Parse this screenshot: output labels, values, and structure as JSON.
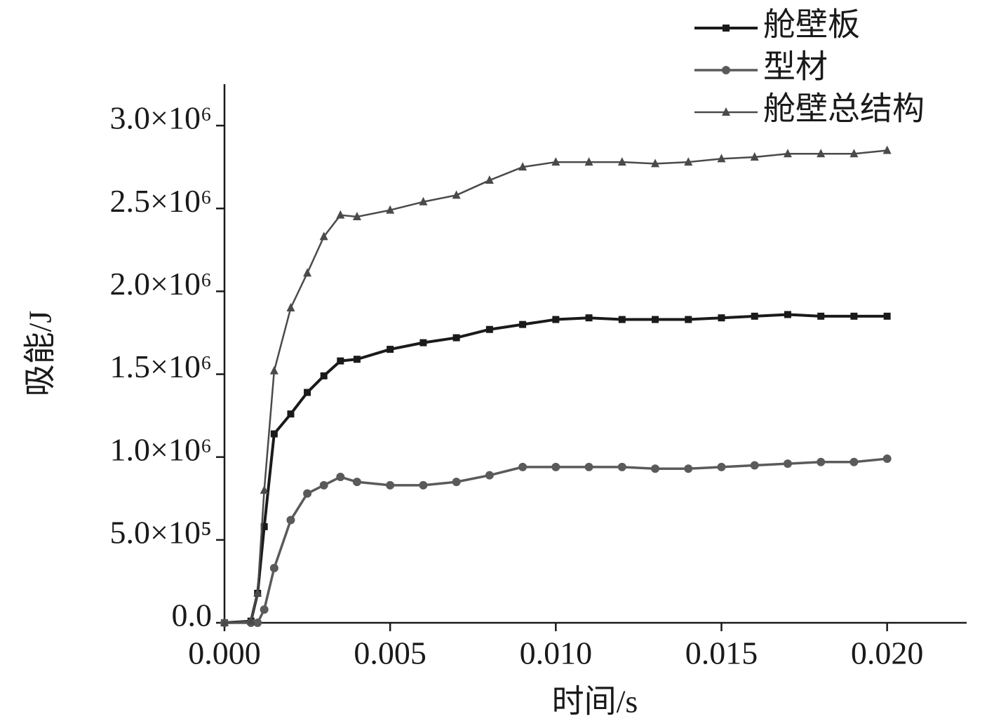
{
  "chart_data": {
    "type": "line",
    "xlabel": "时间/s",
    "ylabel": "吸能/J",
    "x": [
      0,
      0.0008,
      0.001,
      0.0012,
      0.0015,
      0.002,
      0.0025,
      0.003,
      0.0035,
      0.004,
      0.005,
      0.006,
      0.007,
      0.008,
      0.009,
      0.01,
      0.011,
      0.012,
      0.013,
      0.014,
      0.015,
      0.016,
      0.017,
      0.018,
      0.019,
      0.02
    ],
    "series": [
      {
        "name": "舱壁板",
        "color": "#1a1a1a",
        "marker": "square",
        "linewidth": 4,
        "values": [
          0,
          10000,
          178000,
          580000,
          1140000,
          1260000,
          1390000,
          1490000,
          1580000,
          1590000,
          1650000,
          1690000,
          1720000,
          1770000,
          1800000,
          1830000,
          1840000,
          1830000,
          1830000,
          1830000,
          1840000,
          1850000,
          1860000,
          1850000,
          1850000,
          1850000
        ]
      },
      {
        "name": "型材",
        "color": "#5a5a5a",
        "marker": "circle",
        "linewidth": 3.5,
        "values": [
          0,
          0,
          0,
          80000,
          330000,
          620000,
          780000,
          830000,
          880000,
          850000,
          830000,
          830000,
          850000,
          890000,
          940000,
          940000,
          940000,
          940000,
          930000,
          930000,
          940000,
          950000,
          960000,
          970000,
          970000,
          990000
        ]
      },
      {
        "name": "舱壁总结构",
        "color": "#4a4a4a",
        "marker": "triangle",
        "linewidth": 2.5,
        "values": [
          0,
          10000,
          180000,
          800000,
          1520000,
          1900000,
          2110000,
          2330000,
          2460000,
          2450000,
          2490000,
          2540000,
          2580000,
          2670000,
          2750000,
          2780000,
          2780000,
          2780000,
          2770000,
          2780000,
          2800000,
          2810000,
          2830000,
          2830000,
          2830000,
          2850000
        ]
      }
    ],
    "xlim": [
      0,
      0.0224
    ],
    "ylim": [
      0,
      3250000
    ],
    "xticks": [
      {
        "value": 0,
        "label": "0.000"
      },
      {
        "value": 0.005,
        "label": "0.005"
      },
      {
        "value": 0.01,
        "label": "0.010"
      },
      {
        "value": 0.015,
        "label": "0.015"
      },
      {
        "value": 0.02,
        "label": "0.020"
      }
    ],
    "yticks": [
      {
        "value": 0,
        "label": "0.0"
      },
      {
        "value": 500000,
        "label": "5.0×10⁵"
      },
      {
        "value": 1000000,
        "label": "1.0×10⁶"
      },
      {
        "value": 1500000,
        "label": "1.5×10⁶"
      },
      {
        "value": 2000000,
        "label": "2.0×10⁶"
      },
      {
        "value": 2500000,
        "label": "2.5×10⁶"
      },
      {
        "value": 3000000,
        "label": "3.0×10⁶"
      }
    ],
    "grid": false,
    "legend": "upper right"
  }
}
